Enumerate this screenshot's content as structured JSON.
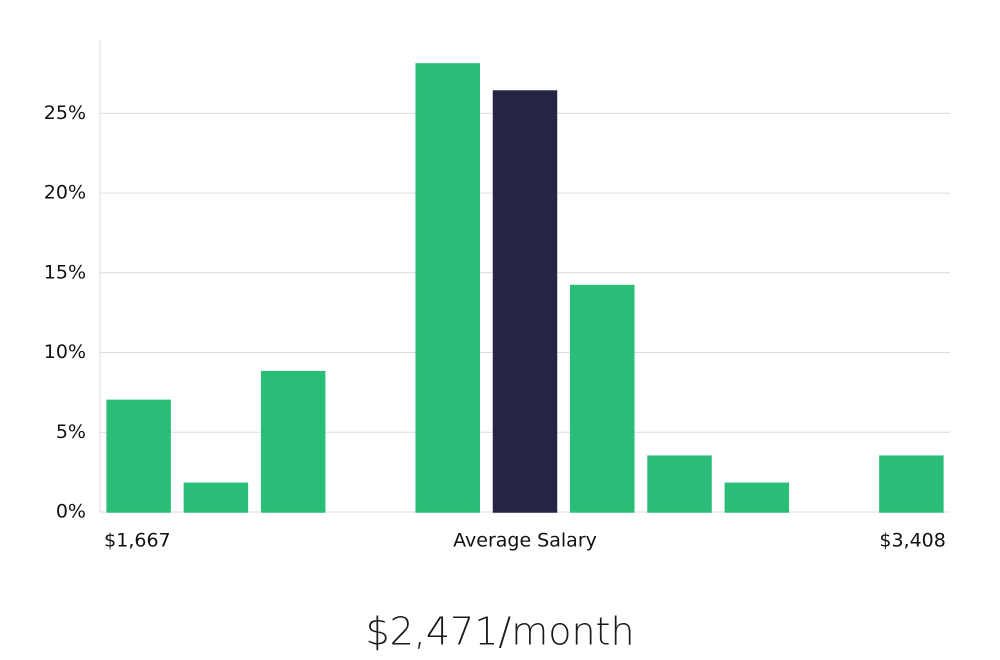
{
  "chart_data": {
    "type": "bar",
    "categories": [
      "$1,667",
      null,
      null,
      null,
      null,
      "Average Salary",
      null,
      null,
      null,
      null,
      "$3,408"
    ],
    "values": [
      7.0,
      1.8,
      8.8,
      0,
      28.1,
      26.4,
      14.2,
      3.5,
      1.8,
      0,
      3.5
    ],
    "colors": [
      "#2abd77",
      "#2abd77",
      "#2abd77",
      "#2abd77",
      "#2abd77",
      "#262445",
      "#2abd77",
      "#2abd77",
      "#2abd77",
      "#2abd77",
      "#2abd77"
    ],
    "ylim": [
      0,
      29.6
    ],
    "yticks": [
      {
        "value": 0,
        "label": "0%"
      },
      {
        "value": 5,
        "label": "5%"
      },
      {
        "value": 10,
        "label": "10%"
      },
      {
        "value": 15,
        "label": "15%"
      },
      {
        "value": 20,
        "label": "20%"
      },
      {
        "value": 25,
        "label": "25%"
      }
    ],
    "grid": true,
    "caption": "$2,471/month"
  }
}
